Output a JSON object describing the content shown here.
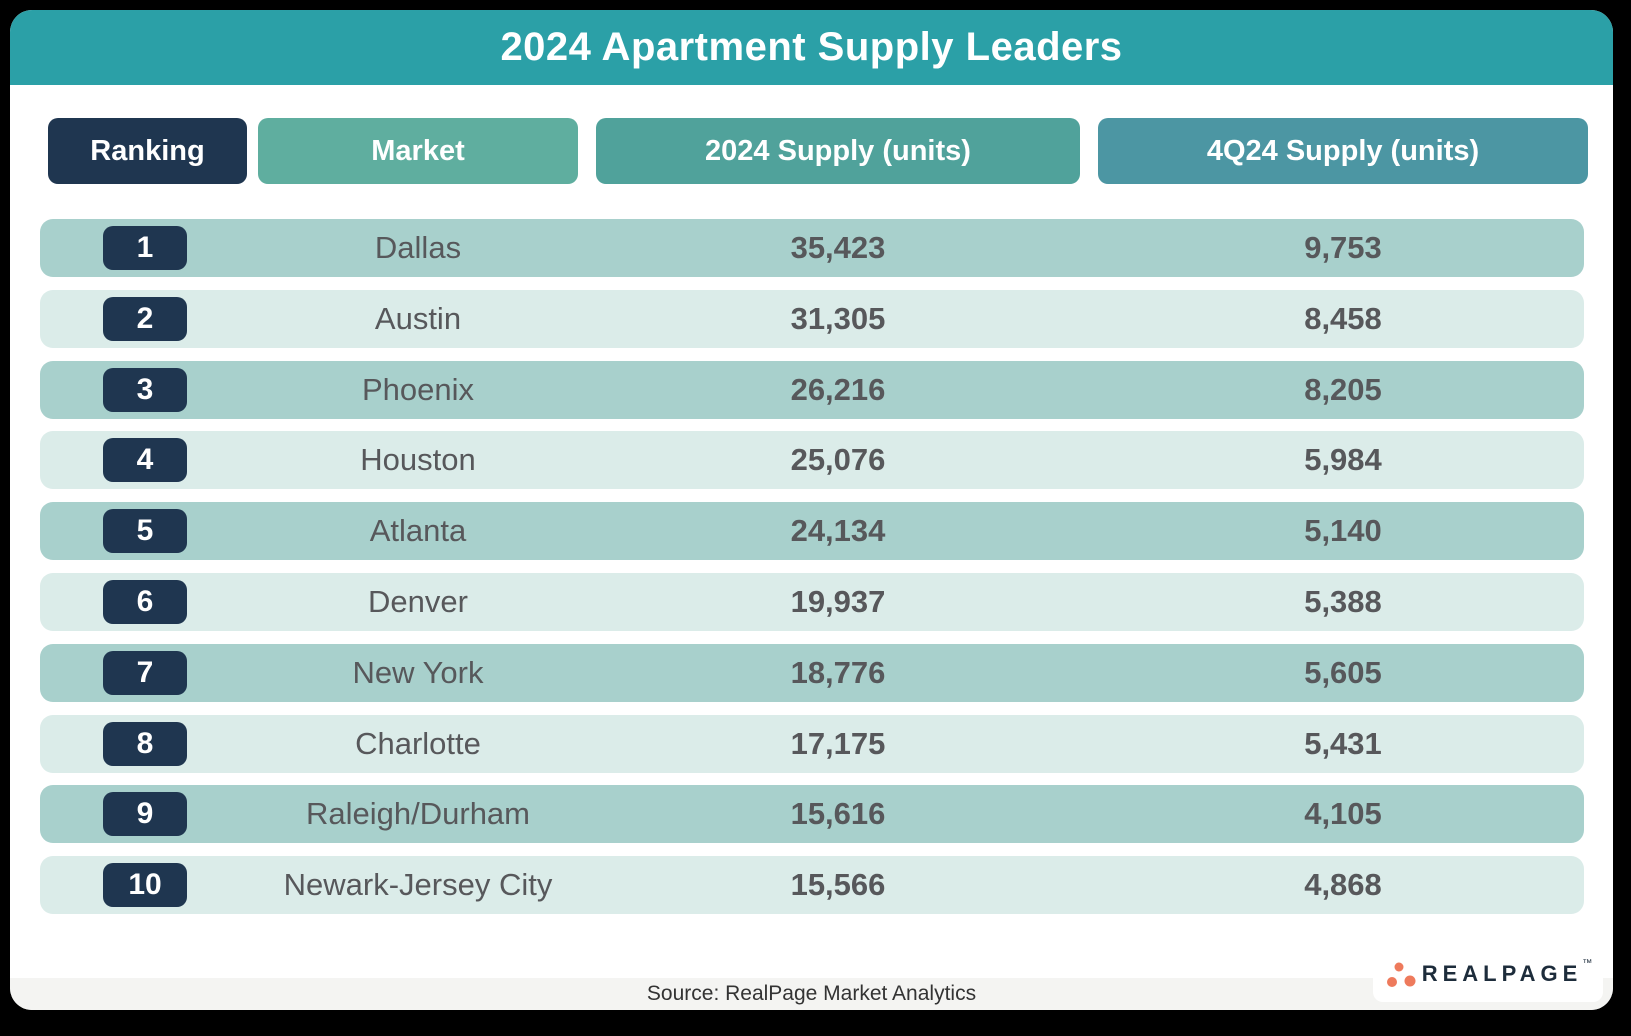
{
  "title": "2024 Apartment Supply Leaders",
  "columns": [
    {
      "label": "Ranking"
    },
    {
      "label": "Market"
    },
    {
      "label": "2024 Supply (units)"
    },
    {
      "label": "4Q24 Supply (units)"
    }
  ],
  "rows": [
    {
      "rank": "1",
      "market": "Dallas",
      "supply_2024": "35,423",
      "supply_4q24": "9,753"
    },
    {
      "rank": "2",
      "market": "Austin",
      "supply_2024": "31,305",
      "supply_4q24": "8,458"
    },
    {
      "rank": "3",
      "market": "Phoenix",
      "supply_2024": "26,216",
      "supply_4q24": "8,205"
    },
    {
      "rank": "4",
      "market": "Houston",
      "supply_2024": "25,076",
      "supply_4q24": "5,984"
    },
    {
      "rank": "5",
      "market": "Atlanta",
      "supply_2024": "24,134",
      "supply_4q24": "5,140"
    },
    {
      "rank": "6",
      "market": "Denver",
      "supply_2024": "19,937",
      "supply_4q24": "5,388"
    },
    {
      "rank": "7",
      "market": "New York",
      "supply_2024": "18,776",
      "supply_4q24": "5,605"
    },
    {
      "rank": "8",
      "market": "Charlotte",
      "supply_2024": "17,175",
      "supply_4q24": "5,431"
    },
    {
      "rank": "9",
      "market": "Raleigh/Durham",
      "supply_2024": "15,616",
      "supply_4q24": "4,105"
    },
    {
      "rank": "10",
      "market": "Newark-Jersey City",
      "supply_2024": "15,566",
      "supply_4q24": "4,868"
    }
  ],
  "footer": {
    "source": "Source: RealPage Market Analytics"
  },
  "logo": {
    "text": "REALPAGE",
    "mark": "™",
    "dot_color": "#EE7A5C",
    "text_color": "#1D2C3B"
  },
  "colors": {
    "title_bar": "#2BA0A7",
    "headers": [
      "#1F3650",
      "#5FAE9F",
      "#50A29B",
      "#4C96A3"
    ],
    "badge": "#1F3650",
    "row_dark": "#A8D0CC",
    "row_light": "#DBECE9",
    "text": "#57585B",
    "footer_bg": "#F4F4F2"
  },
  "chart_data": {
    "type": "table",
    "title": "2024 Apartment Supply Leaders",
    "columns": [
      "Ranking",
      "Market",
      "2024 Supply (units)",
      "4Q24 Supply (units)"
    ],
    "rows": [
      [
        1,
        "Dallas",
        35423,
        9753
      ],
      [
        2,
        "Austin",
        31305,
        8458
      ],
      [
        3,
        "Phoenix",
        26216,
        8205
      ],
      [
        4,
        "Houston",
        25076,
        5984
      ],
      [
        5,
        "Atlanta",
        24134,
        5140
      ],
      [
        6,
        "Denver",
        19937,
        5388
      ],
      [
        7,
        "New York",
        18776,
        5605
      ],
      [
        8,
        "Charlotte",
        17175,
        5431
      ],
      [
        9,
        "Raleigh/Durham",
        15616,
        4105
      ],
      [
        10,
        "Newark-Jersey City",
        15566,
        4868
      ]
    ],
    "source": "Source: RealPage Market Analytics"
  }
}
